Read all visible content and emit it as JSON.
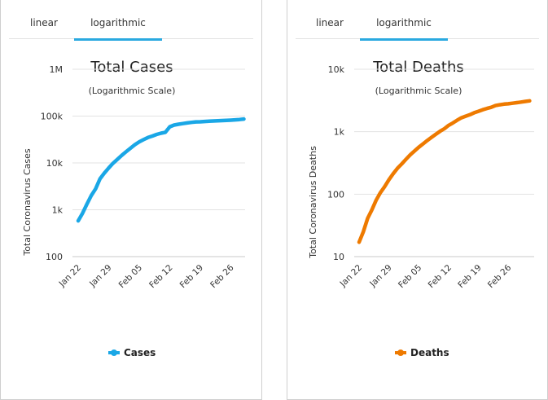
{
  "tabs": [
    "linear",
    "logarithmic"
  ],
  "active_tab": "logarithmic",
  "chart_data": [
    {
      "type": "line",
      "title": "Total Cases",
      "subtitle": "(Logarithmic Scale)",
      "ylabel": "Total Coronavirus Cases",
      "yscale": "log",
      "ylim": [
        100,
        1000000
      ],
      "yticks": [
        100,
        1000,
        10000,
        100000,
        1000000
      ],
      "ytick_labels": [
        "100",
        "1k",
        "10k",
        "100k",
        "1M"
      ],
      "xtick_labels": [
        "Jan 22",
        "Jan 29",
        "Feb 05",
        "Feb 12",
        "Feb 19",
        "Feb 26"
      ],
      "grid": true,
      "legend_position": "bottom",
      "x": [
        "Jan 22",
        "Jan 23",
        "Jan 24",
        "Jan 25",
        "Jan 26",
        "Jan 27",
        "Jan 28",
        "Jan 29",
        "Jan 30",
        "Jan 31",
        "Feb 01",
        "Feb 02",
        "Feb 03",
        "Feb 04",
        "Feb 05",
        "Feb 06",
        "Feb 07",
        "Feb 08",
        "Feb 09",
        "Feb 10",
        "Feb 11",
        "Feb 12",
        "Feb 13",
        "Feb 14",
        "Feb 15",
        "Feb 16",
        "Feb 17",
        "Feb 18",
        "Feb 19",
        "Feb 20",
        "Feb 21",
        "Feb 22",
        "Feb 23",
        "Feb 24",
        "Feb 25",
        "Feb 26",
        "Feb 27",
        "Feb 28",
        "Feb 29"
      ],
      "series": [
        {
          "name": "Cases",
          "color": "#1aa7e6",
          "values": [
            580,
            845,
            1317,
            2015,
            2800,
            4581,
            6058,
            7813,
            9823,
            11950,
            14553,
            17391,
            20630,
            24545,
            28266,
            31439,
            34876,
            37552,
            40553,
            43099,
            45134,
            59287,
            64438,
            67100,
            69197,
            71329,
            73332,
            75184,
            75700,
            76677,
            77673,
            78651,
            79205,
            80087,
            80828,
            81820,
            83112,
            84615,
            86604
          ]
        }
      ]
    },
    {
      "type": "line",
      "title": "Total Deaths",
      "subtitle": "(Logarithmic Scale)",
      "ylabel": "Total Coronavirus Deaths",
      "yscale": "log",
      "ylim": [
        10,
        10000
      ],
      "yticks": [
        10,
        100,
        1000,
        10000
      ],
      "ytick_labels": [
        "10",
        "100",
        "1k",
        "10k"
      ],
      "xtick_labels": [
        "Jan 22",
        "Jan 29",
        "Feb 05",
        "Feb 12",
        "Feb 19",
        "Feb 26"
      ],
      "grid": true,
      "legend_position": "bottom",
      "x": [
        "Jan 22",
        "Jan 23",
        "Jan 24",
        "Jan 25",
        "Jan 26",
        "Jan 27",
        "Jan 28",
        "Jan 29",
        "Jan 30",
        "Jan 31",
        "Feb 01",
        "Feb 02",
        "Feb 03",
        "Feb 04",
        "Feb 05",
        "Feb 06",
        "Feb 07",
        "Feb 08",
        "Feb 09",
        "Feb 10",
        "Feb 11",
        "Feb 12",
        "Feb 13",
        "Feb 14",
        "Feb 15",
        "Feb 16",
        "Feb 17",
        "Feb 18",
        "Feb 19",
        "Feb 20",
        "Feb 21",
        "Feb 22",
        "Feb 23",
        "Feb 24",
        "Feb 25",
        "Feb 26",
        "Feb 27",
        "Feb 28",
        "Feb 29",
        "Mar 01",
        "Mar 02"
      ],
      "series": [
        {
          "name": "Deaths",
          "color": "#ee7a00",
          "values": [
            17,
            25,
            41,
            56,
            80,
            106,
            132,
            170,
            213,
            259,
            304,
            362,
            426,
            492,
            565,
            638,
            724,
            813,
            910,
            1018,
            1115,
            1261,
            1383,
            1526,
            1669,
            1775,
            1873,
            2009,
            2126,
            2247,
            2360,
            2460,
            2618,
            2699,
            2763,
            2800,
            2858,
            2923,
            2977,
            3050,
            3117
          ]
        }
      ]
    }
  ]
}
